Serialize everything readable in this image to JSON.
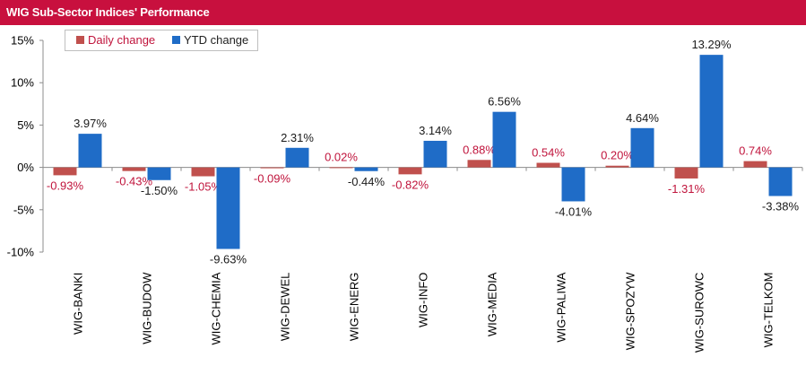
{
  "title": "WIG Sub-Sector Indices' Performance",
  "colors": {
    "title_bg": "#c8103e",
    "daily": "#c0504d",
    "ytd": "#1f6cc7",
    "daily_label": "#c0143c",
    "ytd_label": "#1a1a1a"
  },
  "chart_data": {
    "type": "bar",
    "title": "WIG Sub-Sector Indices' Performance",
    "categories": [
      "WIG-BANKI",
      "WIG-BUDOW",
      "WIG-CHEMIA",
      "WIG-DEWEL",
      "WIG-ENERG",
      "WIG-INFO",
      "WIG-MEDIA",
      "WIG-PALIWA",
      "WIG-SPOZYW",
      "WIG-SUROWC",
      "WIG-TELKOM"
    ],
    "series": [
      {
        "name": "Daily change",
        "values": [
          -0.93,
          -0.43,
          -1.05,
          -0.09,
          0.02,
          -0.82,
          0.88,
          0.54,
          0.2,
          -1.31,
          0.74
        ],
        "labels": [
          "-0.93%",
          "-0.43%",
          "-1.05%",
          "-0.09%",
          "0.02%",
          "-0.82%",
          "0.88%",
          "0.54%",
          "0.20%",
          "-1.31%",
          "0.74%"
        ]
      },
      {
        "name": "YTD change",
        "values": [
          3.97,
          -1.5,
          -9.63,
          2.31,
          -0.44,
          3.14,
          6.56,
          -4.01,
          4.64,
          13.29,
          -3.38
        ],
        "labels": [
          "3.97%",
          "-1.50%",
          "-9.63%",
          "2.31%",
          "-0.44%",
          "3.14%",
          "6.56%",
          "-4.01%",
          "4.64%",
          "13.29%",
          "-3.38%"
        ]
      }
    ],
    "ylim": [
      -10,
      15
    ],
    "yticks": [
      15,
      10,
      5,
      0,
      -5,
      -10
    ],
    "ytick_labels": [
      "15%",
      "10%",
      "5%",
      "0%",
      "-5%",
      "-10%"
    ],
    "grid": false,
    "legend": "top-left"
  }
}
